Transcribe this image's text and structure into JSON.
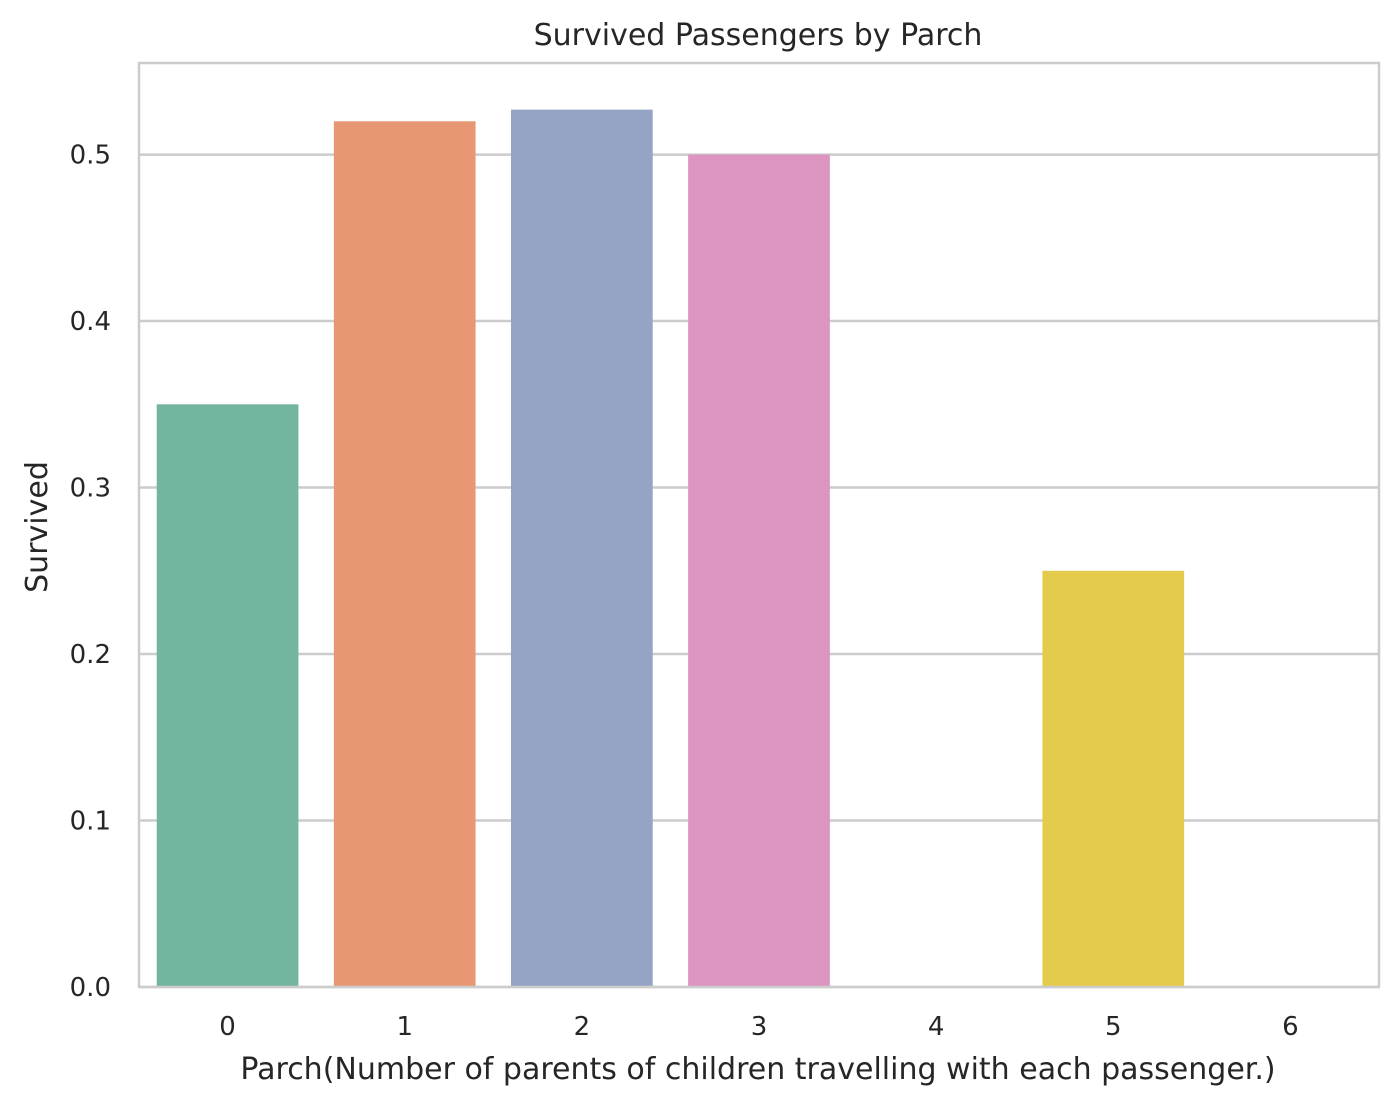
{
  "chart_data": {
    "type": "bar",
    "title": "Survived Passengers by Parch",
    "xlabel": "Parch(Number of parents of children travelling with each passenger.)",
    "ylabel": "Survived",
    "categories": [
      "0",
      "1",
      "2",
      "3",
      "4",
      "5",
      "6"
    ],
    "values": [
      0.35,
      0.52,
      0.527,
      0.5,
      0.0,
      0.25,
      0.0
    ],
    "colors": [
      "#73b59f",
      "#e89774",
      "#95a4c4",
      "#dc95c0",
      "#a5d25e",
      "#e4cb4b",
      "#e3c494"
    ],
    "ylim": [
      0,
      0.555
    ],
    "yticks": [
      0.0,
      0.1,
      0.2,
      0.3,
      0.4,
      0.5
    ],
    "ytick_labels": [
      "0.0",
      "0.1",
      "0.2",
      "0.3",
      "0.4",
      "0.5"
    ],
    "grid": true,
    "legend": false
  }
}
